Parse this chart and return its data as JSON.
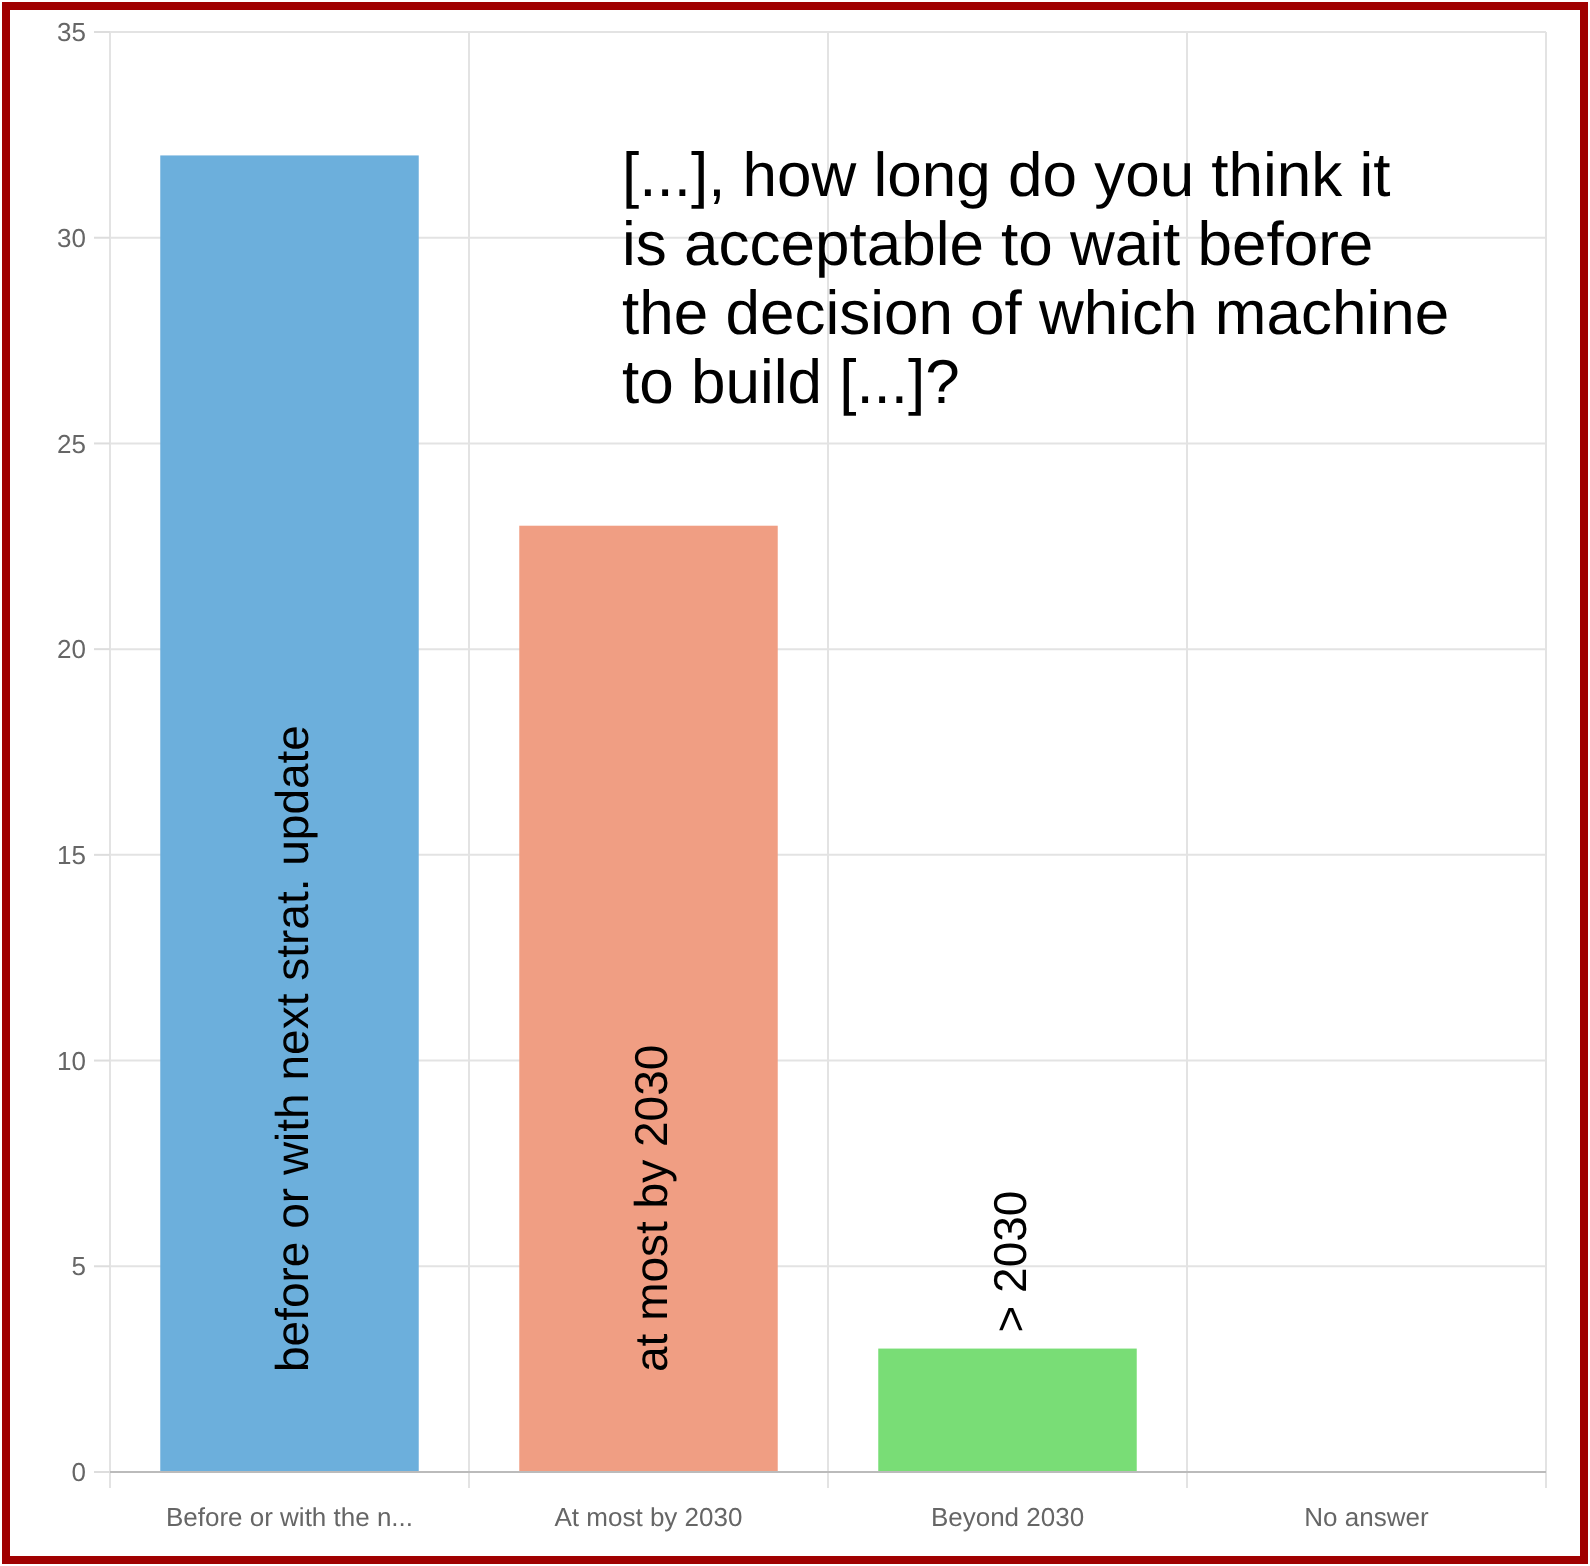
{
  "chart_data": {
    "type": "bar",
    "title": "[...], how long do you think it is acceptable to wait before the decision of which machine to build [...]?",
    "categories": [
      "Before or with the n...",
      "At most by 2030",
      "Beyond 2030",
      "No answer"
    ],
    "values": [
      32,
      23,
      3,
      0
    ],
    "colors": [
      "#6cafdc",
      "#f09e83",
      "#79dd76",
      "#cccccc"
    ],
    "ylim": [
      0,
      35
    ],
    "yticks": [
      0,
      5,
      10,
      15,
      20,
      25,
      30,
      35
    ],
    "grid": true,
    "annotations": [
      "before or with next strat. update",
      "at most by 2030",
      "> 2030"
    ]
  }
}
